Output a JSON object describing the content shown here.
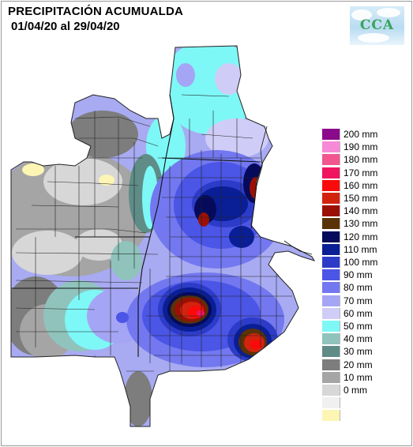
{
  "header": {
    "title": "PRECIPITACIÓN ACUMUALDA",
    "date_range": "01/04/20 al 29/04/20"
  },
  "logo": {
    "text": "CCA"
  },
  "legend": {
    "items": [
      {
        "label": "200 mm",
        "color": "#8b0a8b"
      },
      {
        "label": "190 mm",
        "color": "#f78ad6"
      },
      {
        "label": "180 mm",
        "color": "#f2568f"
      },
      {
        "label": "170 mm",
        "color": "#f0155f"
      },
      {
        "label": "160 mm",
        "color": "#fa0a0a"
      },
      {
        "label": "150 mm",
        "color": "#d2230f"
      },
      {
        "label": "140 mm",
        "color": "#9b1005"
      },
      {
        "label": "130 mm",
        "color": "#5a3207"
      },
      {
        "label": "120 mm",
        "color": "#050a5a"
      },
      {
        "label": "110 mm",
        "color": "#0a1e96"
      },
      {
        "label": "100 mm",
        "color": "#2d3cc8"
      },
      {
        "label": "90 mm",
        "color": "#4b55e6"
      },
      {
        "label": "80 mm",
        "color": "#7378f0"
      },
      {
        "label": "70 mm",
        "color": "#a5a5f5"
      },
      {
        "label": "60 mm",
        "color": "#cfcdf7"
      },
      {
        "label": "50 mm",
        "color": "#7ef7f7"
      },
      {
        "label": "40 mm",
        "color": "#8fc3bc"
      },
      {
        "label": "30 mm",
        "color": "#5f8c87"
      },
      {
        "label": "20 mm",
        "color": "#7d7d7d"
      },
      {
        "label": "10 mm",
        "color": "#a5a5a5"
      },
      {
        "label": "0 mm",
        "color": "#d7d7d7"
      },
      {
        "label": "",
        "color": "#f0f0f0"
      },
      {
        "label": "",
        "color": "#fdf5b4"
      }
    ]
  }
}
